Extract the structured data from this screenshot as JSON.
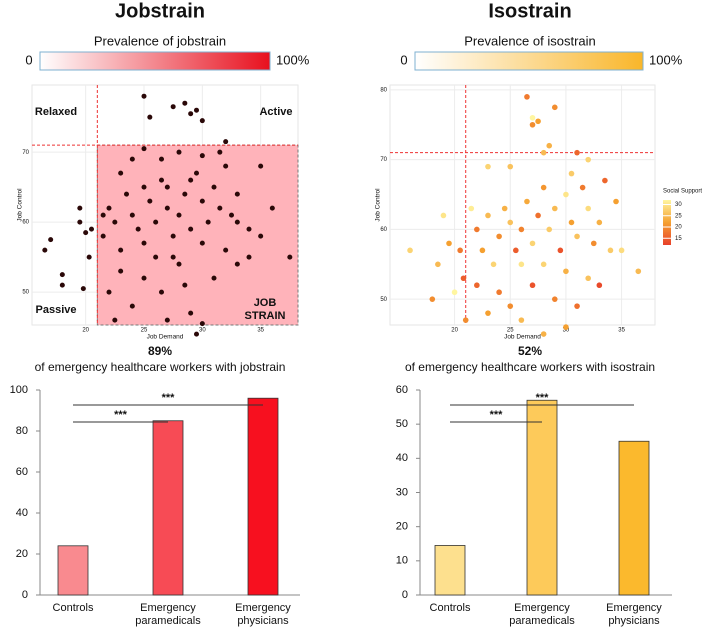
{
  "chart_data": [
    {
      "type": "scatter",
      "title": "Jobstrain",
      "colorbar": {
        "label": "Prevalence of jobstrain",
        "min_label": "0",
        "max_label": "100%",
        "colors": [
          "#ffffff",
          "#e8101e"
        ]
      },
      "xlabel": "Job Demand",
      "ylabel": "Job Control",
      "xlim": [
        15.4,
        38.2
      ],
      "ylim": [
        45.3,
        79.6
      ],
      "xticks": [
        20,
        25,
        30,
        35
      ],
      "yticks": [
        50,
        60,
        70
      ],
      "threshold": {
        "x": 21,
        "y": 71
      },
      "region_color": "#ffb3ba",
      "color": "#2a0808",
      "grid": true,
      "annotations": {
        "relaxed": "Relaxed",
        "active": "Active",
        "passive": "Passive",
        "strain": "JOB STRAIN"
      },
      "x": [
        25,
        25.5,
        27.5,
        28.5,
        29,
        29.5,
        30,
        32,
        16.5,
        17,
        18,
        18,
        19.5,
        19.5,
        20,
        20.3,
        19.8,
        20.5,
        22,
        22.5,
        21.5,
        23,
        23.5,
        24,
        24.5,
        25,
        25.5,
        26,
        26.5,
        27,
        27.5,
        28,
        28.5,
        29,
        29.5,
        30,
        30.5,
        31,
        31.5,
        32,
        32.5,
        33,
        34,
        35,
        35,
        36,
        37.5,
        22,
        22.5,
        23,
        24,
        25,
        26,
        26.5,
        27,
        28,
        28.5,
        29,
        29.5,
        30,
        31,
        32,
        33,
        34,
        23,
        24,
        25,
        26.5,
        28,
        30,
        31.5,
        27,
        29,
        25,
        27.5,
        30,
        33,
        21.5
      ],
      "y": [
        78,
        75,
        76.5,
        77,
        75.5,
        76,
        74.5,
        71.5,
        56,
        57.5,
        52.5,
        51,
        62,
        60,
        58.5,
        55,
        50.5,
        59,
        62,
        60,
        58,
        56,
        64,
        61,
        59,
        57,
        63,
        60,
        66,
        62,
        58,
        61,
        64,
        59,
        67,
        63,
        60,
        65,
        62,
        68,
        61,
        64,
        59,
        68,
        58,
        62,
        55,
        50,
        46,
        53,
        48,
        52,
        55,
        50,
        46,
        54,
        51,
        47,
        44,
        45.5,
        52,
        56,
        54,
        55,
        67,
        69,
        70.5,
        69,
        70,
        69.5,
        70,
        65,
        66,
        65,
        55,
        57,
        60,
        61
      ],
      "value": "89%",
      "caption": "of emergency healthcare workers with jobstrain"
    },
    {
      "type": "bar",
      "categories": [
        "Controls",
        "Emergency paramedicals",
        "Emergency physicians"
      ],
      "values": [
        24,
        85,
        96
      ],
      "colors": [
        "#f98a8f",
        "#f74b55",
        "#f7101f"
      ],
      "ylim": [
        0,
        100
      ],
      "yticks": [
        0,
        20,
        40,
        60,
        80,
        100
      ],
      "significance": [
        {
          "from": 0,
          "to": 1,
          "label": "***"
        },
        {
          "from": 0,
          "to": 2,
          "label": "***"
        }
      ]
    },
    {
      "type": "scatter",
      "title": "Isostrain",
      "colorbar": {
        "label": "Prevalence of isostrain",
        "min_label": "0",
        "max_label": "100%",
        "colors": [
          "#ffffff",
          "#f9b62a"
        ]
      },
      "xlabel": "Job Demand",
      "ylabel": "Job Control",
      "xlim": [
        14.2,
        38
      ],
      "ylim": [
        46.3,
        80.7
      ],
      "xticks": [
        20,
        25,
        30,
        35
      ],
      "yticks": [
        50,
        60,
        70,
        80
      ],
      "threshold": {
        "x": 21,
        "y": 71
      },
      "grid": true,
      "color_legend": {
        "title": "Social Support",
        "ticks": [
          15,
          20,
          25,
          30
        ],
        "lim": [
          12,
          32
        ],
        "colors": [
          "#e8402a",
          "#f5a030",
          "#fff6a0"
        ]
      },
      "x": [
        16,
        18,
        18.5,
        19,
        20,
        20.5,
        19.5,
        20.8,
        23,
        25,
        27,
        27.5,
        28,
        26.5,
        29,
        27,
        28.5,
        31,
        32,
        30.5,
        22,
        22.5,
        23,
        23.5,
        24,
        24.5,
        25,
        25.5,
        26,
        26.5,
        27,
        27.5,
        28,
        28.5,
        29,
        29.5,
        30,
        30.5,
        31,
        31.5,
        32,
        32.5,
        33,
        33.5,
        34,
        34.5,
        36.5,
        22,
        23,
        24,
        25,
        26,
        27,
        28,
        29,
        30,
        31,
        32,
        21,
        26,
        28,
        30,
        33,
        35,
        21.5
      ],
      "y": [
        57,
        50,
        55,
        62,
        51,
        57,
        58,
        53,
        69,
        69,
        75,
        75.5,
        71,
        79,
        77.5,
        76,
        72,
        71,
        70,
        68,
        60,
        57,
        62,
        55,
        59,
        63,
        61,
        57,
        60,
        64,
        58,
        62,
        66,
        60,
        63,
        57,
        65,
        61,
        59,
        66,
        63,
        58,
        61,
        67,
        57,
        64,
        54,
        52,
        48,
        51,
        49,
        47,
        52,
        45,
        50,
        46,
        49,
        53,
        47,
        55,
        55,
        54,
        52,
        57,
        63
      ],
      "support": [
        28,
        20,
        25,
        30,
        32,
        18,
        22,
        15,
        28,
        26,
        20,
        22,
        25,
        18,
        20,
        32,
        24,
        16,
        28,
        27,
        18,
        22,
        25,
        28,
        20,
        24,
        26,
        15,
        19,
        23,
        28,
        17,
        21,
        27,
        25,
        14,
        30,
        22,
        26,
        18,
        29,
        20,
        24,
        16,
        27,
        22,
        25,
        16,
        22,
        18,
        20,
        25,
        14,
        24,
        19,
        22,
        17,
        26,
        20,
        30,
        28,
        24,
        13,
        29,
        31
      ],
      "value": "52%",
      "caption": "of emergency healthcare workers with isostrain"
    },
    {
      "type": "bar",
      "categories": [
        "Controls",
        "Emergency paramedicals",
        "Emergency physicians"
      ],
      "values": [
        14.5,
        57,
        45
      ],
      "colors": [
        "#fde08e",
        "#fdca5a",
        "#fbb92d"
      ],
      "ylim": [
        0,
        60
      ],
      "yticks": [
        0,
        10,
        20,
        30,
        40,
        50,
        60
      ],
      "significance": [
        {
          "from": 0,
          "to": 1,
          "label": "***"
        },
        {
          "from": 0,
          "to": 2,
          "label": "***"
        }
      ]
    }
  ]
}
